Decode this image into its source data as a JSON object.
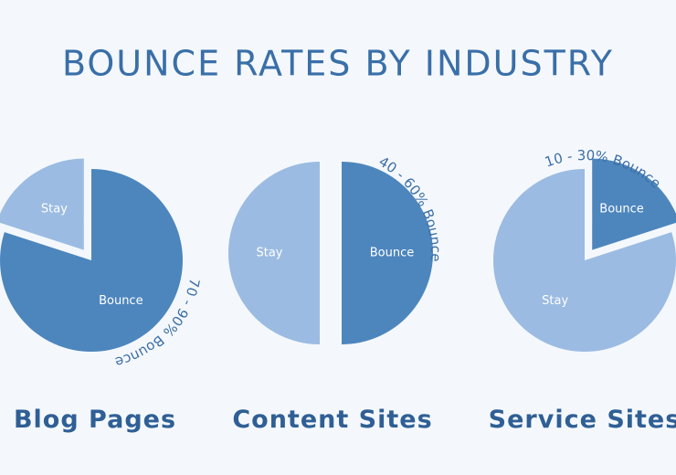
{
  "title": "BOUNCE RATES BY INDUSTRY",
  "chart_data": [
    {
      "type": "pie",
      "title": "Blog Pages",
      "categories": [
        "Stay",
        "Bounce"
      ],
      "values": [
        20,
        80
      ],
      "colors": [
        "#9bbbe2",
        "#4d86bd"
      ],
      "annotation": "70 - 90% Bounce"
    },
    {
      "type": "pie",
      "title": "Content Sites",
      "categories": [
        "Stay",
        "Bounce"
      ],
      "values": [
        50,
        50
      ],
      "colors": [
        "#9bbbe2",
        "#4d86bd"
      ],
      "annotation": "40 - 60% Bounce"
    },
    {
      "type": "pie",
      "title": "Service Sites",
      "categories": [
        "Stay",
        "Bounce"
      ],
      "values": [
        80,
        20
      ],
      "colors": [
        "#9bbbe2",
        "#4d86bd"
      ],
      "annotation": "10 - 30% Bounce"
    }
  ]
}
